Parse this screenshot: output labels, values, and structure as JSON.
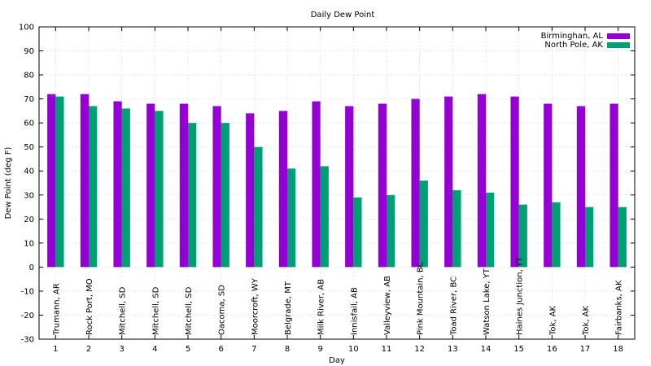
{
  "chart_data": {
    "type": "bar",
    "title": "Daily Dew Point",
    "xlabel": "Day",
    "ylabel": "Dew Point (deg F)",
    "ylim": [
      -30,
      100
    ],
    "yticks": [
      -30,
      -20,
      -10,
      0,
      10,
      20,
      30,
      40,
      50,
      60,
      70,
      80,
      90,
      100
    ],
    "grid": true,
    "legend_position": "top-right",
    "categories": [
      "1",
      "2",
      "3",
      "4",
      "5",
      "6",
      "7",
      "8",
      "9",
      "10",
      "11",
      "12",
      "13",
      "14",
      "15",
      "16",
      "17",
      "18"
    ],
    "locations": [
      "Trumann, AR",
      "Rock Port, MO",
      "Mitchell, SD",
      "Mitchell, SD",
      "Mitchell, SD",
      "Oacoma, SD",
      "Moorcroft, WY",
      "Belgrade, MT",
      "Milk River, AB",
      "Innisfail, AB",
      "Valleyview, AB",
      "Pink Mountain, BC",
      "Toad River, BC",
      "Watson Lake, YT",
      "Haines Junction, YT",
      "Tok, AK",
      "Tok, AK",
      "Fairbanks, AK"
    ],
    "series": [
      {
        "name": "Birminghan, AL",
        "color": "#9400d3",
        "values": [
          72,
          72,
          69,
          68,
          68,
          67,
          64,
          65,
          69,
          67,
          68,
          70,
          71,
          72,
          71,
          68,
          67,
          68
        ]
      },
      {
        "name": "North Pole, AK",
        "color": "#009e73",
        "values": [
          71,
          67,
          66,
          65,
          60,
          60,
          50,
          41,
          42,
          29,
          30,
          36,
          32,
          31,
          26,
          27,
          25,
          25
        ]
      }
    ]
  }
}
